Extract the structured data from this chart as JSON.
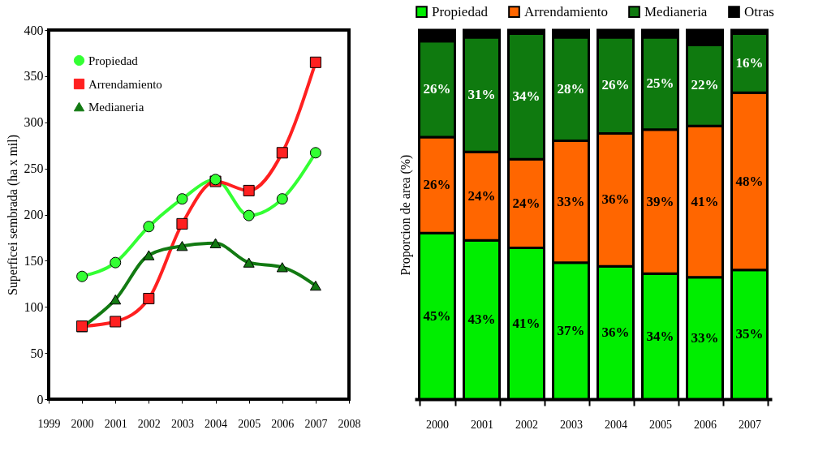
{
  "chart_data": [
    {
      "type": "line",
      "ylabel": "Superficei sembrada (ha x mil)",
      "x": [
        2000,
        2001,
        2002,
        2003,
        2004,
        2005,
        2006,
        2007
      ],
      "xlim": [
        1999,
        2008
      ],
      "xticks": [
        1999,
        2000,
        2001,
        2002,
        2003,
        2004,
        2005,
        2006,
        2007,
        2008
      ],
      "ylim": [
        0,
        400
      ],
      "yticks": [
        0,
        50,
        100,
        150,
        200,
        250,
        300,
        350,
        400
      ],
      "grid": false,
      "legend": "top left",
      "line_style": "solid",
      "series": [
        {
          "name": "Propiedad",
          "color": "#33ff33",
          "marker": "circle",
          "values": [
            133,
            148,
            187,
            217,
            238,
            199,
            217,
            267
          ]
        },
        {
          "name": "Arrendamiento",
          "color": "#ff2020",
          "marker": "square",
          "values": [
            79,
            84,
            109,
            190,
            236,
            226,
            267,
            365
          ]
        },
        {
          "name": "Medianeria",
          "color": "#127a12",
          "marker": "triangle",
          "values": [
            78,
            108,
            156,
            166,
            169,
            148,
            143,
            123
          ]
        }
      ]
    },
    {
      "type": "bar",
      "stacked": true,
      "ylabel": "Proporcion de area (%)",
      "categories": [
        "2000",
        "2001",
        "2002",
        "2003",
        "2004",
        "2005",
        "2006",
        "2007"
      ],
      "ylim": [
        0,
        100
      ],
      "tick_labels": "x",
      "legend": "top",
      "grid": false,
      "series": [
        {
          "name": "Propiedad",
          "color": "#00ee00",
          "values": [
            45,
            43,
            41,
            37,
            36,
            34,
            33,
            35
          ],
          "value_labels": [
            "45%",
            "43%",
            "41%",
            "37%",
            "36%",
            "34%",
            "33%",
            "35%"
          ]
        },
        {
          "name": "Arrendamiento",
          "color": "#ff6600",
          "values": [
            26,
            24,
            24,
            33,
            36,
            39,
            41,
            48
          ],
          "value_labels": [
            "26%",
            "24%",
            "24%",
            "33%",
            "36%",
            "39%",
            "41%",
            "48%"
          ]
        },
        {
          "name": "Medianeria",
          "color": "#0f7a0f",
          "values": [
            26,
            31,
            34,
            28,
            26,
            25,
            22,
            16
          ],
          "value_labels": [
            "26%",
            "31%",
            "34%",
            "28%",
            "26%",
            "25%",
            "22%",
            "16%"
          ]
        },
        {
          "name": "Otras",
          "color": "#000000",
          "values": [
            3,
            2,
            1,
            2,
            2,
            2,
            4,
            1
          ],
          "value_labels": [
            null,
            null,
            null,
            null,
            null,
            null,
            null,
            null
          ]
        }
      ]
    }
  ]
}
